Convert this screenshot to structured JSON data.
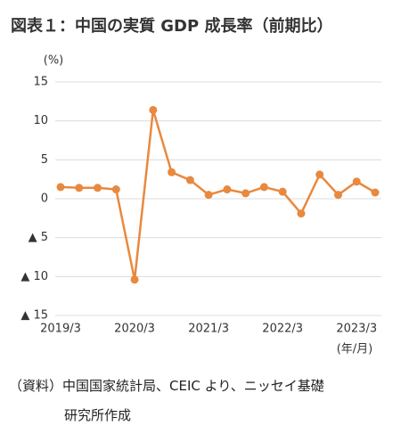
{
  "chart_data": {
    "type": "line",
    "title": "図表１：中国の実質 GDP 成長率（前期比）",
    "y_unit": "(%)",
    "x_label": "(年/月)",
    "categories": [
      "2019/3",
      null,
      null,
      null,
      "2020/3",
      null,
      null,
      null,
      "2021/3",
      null,
      null,
      null,
      "2022/3",
      null,
      null,
      null,
      "2023/3",
      null
    ],
    "series": [
      {
        "name": "実質GDP成長率",
        "color": "#e8893f",
        "values": [
          1.5,
          1.4,
          1.4,
          1.2,
          -10.4,
          11.4,
          3.4,
          2.4,
          0.5,
          1.2,
          0.7,
          1.5,
          0.9,
          -1.9,
          3.1,
          0.5,
          2.2,
          0.8
        ]
      }
    ],
    "ylim": [
      -15,
      15
    ],
    "yticks": [
      {
        "value": -15,
        "label": "▲ 15"
      },
      {
        "value": -10,
        "label": "▲ 10"
      },
      {
        "value": -5,
        "label": "▲ 5"
      },
      0,
      5,
      10,
      15
    ],
    "grid": true,
    "source": [
      "（資料）中国国家統計局、CEIC より、ニッセイ基礎",
      "研究所作成"
    ]
  }
}
